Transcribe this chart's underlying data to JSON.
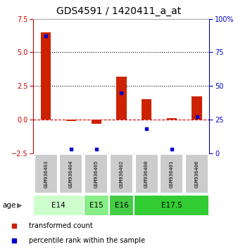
{
  "title": "GDS4591 / 1420411_a_at",
  "samples": [
    "GSM936403",
    "GSM936404",
    "GSM936405",
    "GSM936402",
    "GSM936400",
    "GSM936401",
    "GSM936406"
  ],
  "transformed_count": [
    6.5,
    -0.1,
    -0.3,
    3.2,
    1.5,
    0.1,
    1.7
  ],
  "percentile_rank": [
    87,
    3,
    3,
    45,
    18,
    3,
    27
  ],
  "ylim_left": [
    -2.5,
    7.5
  ],
  "ylim_right": [
    0,
    100
  ],
  "yticks_left": [
    -2.5,
    0,
    2.5,
    5,
    7.5
  ],
  "yticks_right": [
    0,
    25,
    50,
    75,
    100
  ],
  "hlines": [
    0,
    2.5,
    5
  ],
  "hline_styles": [
    "dashed",
    "dotted",
    "dotted"
  ],
  "hline_colors": [
    "#cc0000",
    "#000000",
    "#000000"
  ],
  "bar_color": "#cc2200",
  "dot_color": "#0000cc",
  "age_groups": [
    {
      "label": "E14",
      "start": 0,
      "end": 2,
      "color": "#ccffcc"
    },
    {
      "label": "E15",
      "start": 2,
      "end": 3,
      "color": "#88ee88"
    },
    {
      "label": "E16",
      "start": 3,
      "end": 4,
      "color": "#44cc44"
    },
    {
      "label": "E17.5",
      "start": 4,
      "end": 7,
      "color": "#33cc33"
    }
  ],
  "sample_box_color": "#cccccc",
  "legend_entries": [
    {
      "color": "#cc2200",
      "label": "transformed count"
    },
    {
      "color": "#0000cc",
      "label": "percentile rank within the sample"
    }
  ],
  "left_axis_color": "#cc0000",
  "right_axis_color": "#0000cc",
  "title_fontsize": 10,
  "tick_fontsize": 7,
  "label_fontsize": 7.5
}
